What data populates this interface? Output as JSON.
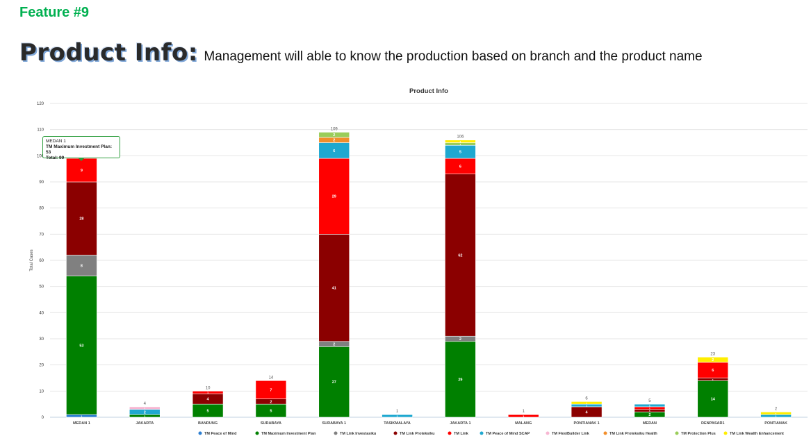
{
  "header": {
    "feature": "Feature #9",
    "title": "Product Info:",
    "description": "Management will able to know the production based on branch and the product name"
  },
  "tooltip": {
    "branch": "MEDAN 1",
    "series_line": "TM Maximum Investment Plan: 53",
    "total_line": "Total: 99"
  },
  "chart_data": {
    "type": "bar",
    "stacked": true,
    "title": "Product Info",
    "xlabel": "",
    "ylabel": "Total Cases",
    "ylim": [
      0,
      120
    ],
    "yticks": [
      0,
      10,
      20,
      30,
      40,
      50,
      60,
      70,
      80,
      90,
      100,
      110,
      120
    ],
    "grid": true,
    "legend_position": "bottom",
    "categories": [
      "MEDAN 1",
      "JAKARTA",
      "BANDUNG",
      "SURABAYA",
      "SURABAYA 1",
      "TASIKMALAYA",
      "JAKARTA 1",
      "MALANG",
      "PONTIANAK 1",
      "MEDAN",
      "DENPASAR1",
      "PONTIANAK"
    ],
    "totals": [
      99,
      4,
      10,
      14,
      109,
      1,
      106,
      1,
      6,
      5,
      23,
      2
    ],
    "series": [
      {
        "name": "TM Peace of Mind",
        "color": "#2d7fd1",
        "values": [
          1,
          0,
          0,
          0,
          0,
          0,
          0,
          0,
          0,
          0,
          0,
          0
        ]
      },
      {
        "name": "TM Maximum Investment Plan",
        "color": "#008000",
        "values": [
          53,
          1,
          5,
          5,
          27,
          0,
          29,
          0,
          0,
          2,
          14,
          0
        ]
      },
      {
        "name": "TM Link Investasiku",
        "color": "#808080",
        "values": [
          8,
          0,
          0,
          0,
          2,
          0,
          2,
          0,
          0,
          0,
          0,
          0
        ]
      },
      {
        "name": "TM Link Proteksiku",
        "color": "#8b0000",
        "values": [
          28,
          0,
          4,
          2,
          41,
          0,
          62,
          0,
          4,
          1,
          1,
          0
        ]
      },
      {
        "name": "TM Link",
        "color": "#ff0000",
        "values": [
          9,
          0,
          1,
          7,
          29,
          0,
          6,
          1,
          0,
          1,
          6,
          0
        ]
      },
      {
        "name": "TM Peace of Mind SCAP",
        "color": "#1fa8d0",
        "values": [
          0,
          2,
          0,
          0,
          6,
          1,
          5,
          0,
          1,
          1,
          0,
          1
        ]
      },
      {
        "name": "TM FlexiBuilder Link",
        "color": "#f7b6d2",
        "values": [
          0,
          1,
          0,
          0,
          0,
          0,
          0,
          0,
          0,
          0,
          0,
          0
        ]
      },
      {
        "name": "TM Link Proteksiku Health",
        "color": "#f28e2b",
        "values": [
          0,
          0,
          0,
          0,
          2,
          0,
          0,
          0,
          0,
          0,
          0,
          0
        ]
      },
      {
        "name": "TM Protection Plus",
        "color": "#9acd5a",
        "values": [
          0,
          0,
          0,
          0,
          2,
          0,
          1,
          0,
          0,
          0,
          0,
          0
        ]
      },
      {
        "name": "TM Link Wealth Enhancement",
        "color": "#ffee00",
        "values": [
          0,
          0,
          0,
          0,
          0,
          0,
          1,
          0,
          1,
          0,
          2,
          1
        ]
      }
    ]
  }
}
